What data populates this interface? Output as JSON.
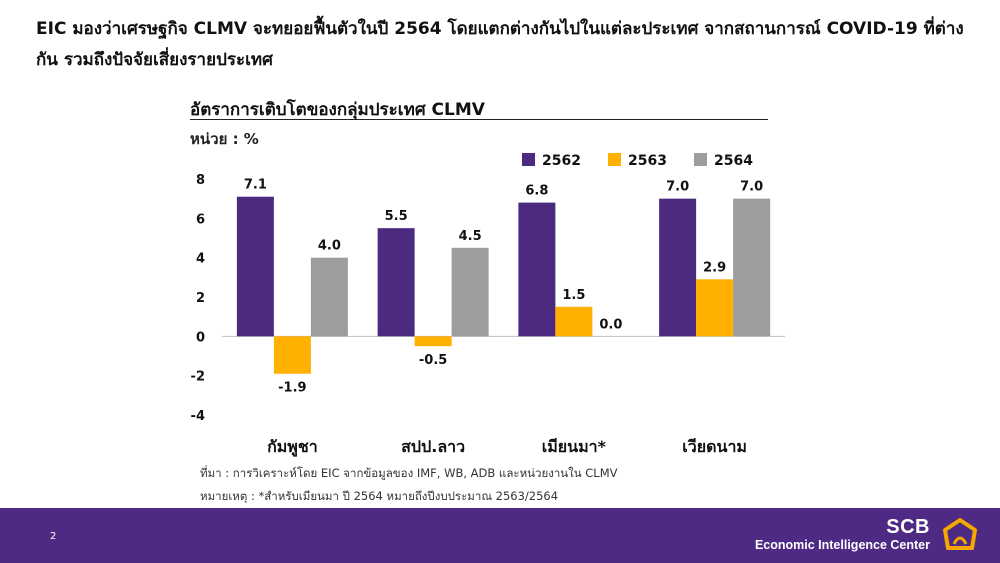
{
  "headline": "EIC มองว่าเศรษฐกิจ CLMV จะทยอยฟื้นตัวในปี 2564 โดยแตกต่างกันไปในแต่ละประเทศ จากสถานการณ์ COVID-19 ที่ต่างกัน รวมถึงปัจจัยเสี่ยงรายประเทศ",
  "chart_data": {
    "type": "bar",
    "title": "อัตราการเติบโตของกลุ่มประเทศ CLMV",
    "unit_label": "หน่วย : %",
    "categories": [
      "กัมพูชา",
      "สปป.ลาว",
      "เมียนมา*",
      "เวียดนาม"
    ],
    "series": [
      {
        "name": "2562",
        "values": [
          7.1,
          5.5,
          6.8,
          7.0
        ],
        "labels": [
          "7.1",
          "5.5",
          "6.8",
          "7.0"
        ],
        "color": "#4b2a80"
      },
      {
        "name": "2563",
        "values": [
          -1.9,
          -0.5,
          1.5,
          2.9
        ],
        "labels": [
          "-1.9",
          "-0.5",
          "1.5",
          "2.9"
        ],
        "color": "#ffb000"
      },
      {
        "name": "2564",
        "values": [
          4.0,
          4.5,
          0.0,
          7.0
        ],
        "labels": [
          "4.0",
          "4.5",
          "0.0",
          "7.0"
        ],
        "color": "#9d9d9d"
      }
    ],
    "ylim": [
      -4,
      8
    ],
    "yticks": [
      8,
      6,
      4,
      2,
      0,
      -2,
      -4
    ],
    "grid": false,
    "legend_position": "top-right"
  },
  "notes": {
    "source": "ที่มา : การวิเคราะห์โดย EIC จากข้อมูลของ IMF, WB, ADB และหน่วยงานใน CLMV",
    "remark": "หมายเหตุ : *สำหรับเมียนมา ปี 2564 หมายถึงปีงบประมาณ 2563/2564"
  },
  "footer": {
    "page_number": "2",
    "brand": "SCB",
    "brand_sub": "Economic Intelligence Center",
    "bg_color": "#4e2a84",
    "logo_color": "#f5a800"
  }
}
